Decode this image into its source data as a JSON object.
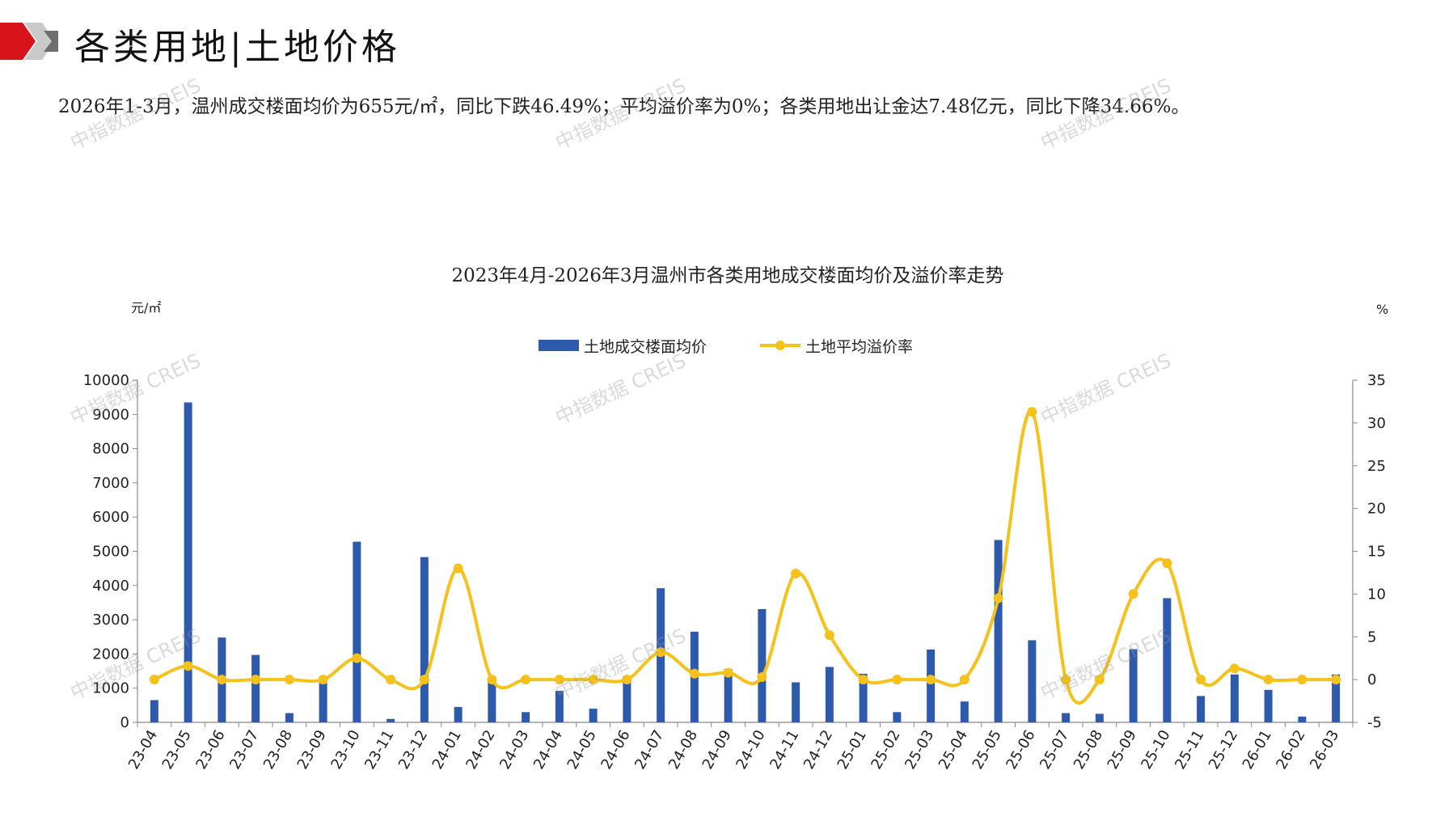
{
  "header": {
    "title": "各类用地|土地价格",
    "icon": "red-gray-arrow-icon"
  },
  "summary": "2026年1-3月，温州成交楼面均价为655元/㎡，同比下跌46.49%；平均溢价率为0%；各类用地出让金达7.48亿元，同比下降34.66%。",
  "watermark": "中指数据 CREIS",
  "colors": {
    "bar": "#2E5AAC",
    "line": "#F5C11A",
    "accent": "#D7141A"
  },
  "chart_data": {
    "type": "bar+line",
    "title": "2023年4月-2026年3月温州市各类用地成交楼面均价及溢价率走势",
    "y_left_unit": "元/㎡",
    "y_right_unit": "%",
    "y_left_lim": [
      0,
      10000
    ],
    "y_left_ticks": [
      "0",
      "1000",
      "2000",
      "3000",
      "4000",
      "5000",
      "6000",
      "7000",
      "8000",
      "9000",
      "10000"
    ],
    "y_right_lim": [
      -5,
      35
    ],
    "y_right_ticks": [
      "-5",
      "0",
      "5",
      "10",
      "15",
      "20",
      "25",
      "30",
      "35"
    ],
    "legend_position": "top-center",
    "categories": [
      "23-04",
      "23-05",
      "23-06",
      "23-07",
      "23-08",
      "23-09",
      "23-10",
      "23-11",
      "23-12",
      "24-01",
      "24-02",
      "24-03",
      "24-04",
      "24-05",
      "24-06",
      "24-07",
      "24-08",
      "24-09",
      "24-10",
      "24-11",
      "24-12",
      "25-01",
      "25-02",
      "25-03",
      "25-04",
      "25-05",
      "25-06",
      "25-07",
      "25-08",
      "25-09",
      "25-10",
      "25-11",
      "25-12",
      "26-01",
      "26-02",
      "26-03"
    ],
    "series": [
      {
        "name": "土地成交楼面均价",
        "type": "bar",
        "axis": "left",
        "values": [
          650,
          9350,
          2480,
          1970,
          270,
          1150,
          5280,
          100,
          4830,
          450,
          1200,
          300,
          920,
          400,
          1350,
          3920,
          2650,
          1560,
          3310,
          1170,
          1620,
          1420,
          300,
          2130,
          610,
          5330,
          2400,
          270,
          250,
          2140,
          3630,
          770,
          1400,
          950,
          170,
          1400
        ]
      },
      {
        "name": "土地平均溢价率",
        "type": "line",
        "axis": "right",
        "values": [
          0,
          1.6,
          0,
          0,
          0,
          0,
          2.5,
          0,
          0,
          13,
          0,
          0,
          0,
          0,
          0,
          3.2,
          0.7,
          0.8,
          0.3,
          12.4,
          5.2,
          0,
          0,
          0,
          0,
          9.5,
          31.3,
          0,
          0,
          10,
          13.6,
          0,
          1.3,
          0,
          0,
          0
        ]
      }
    ]
  }
}
